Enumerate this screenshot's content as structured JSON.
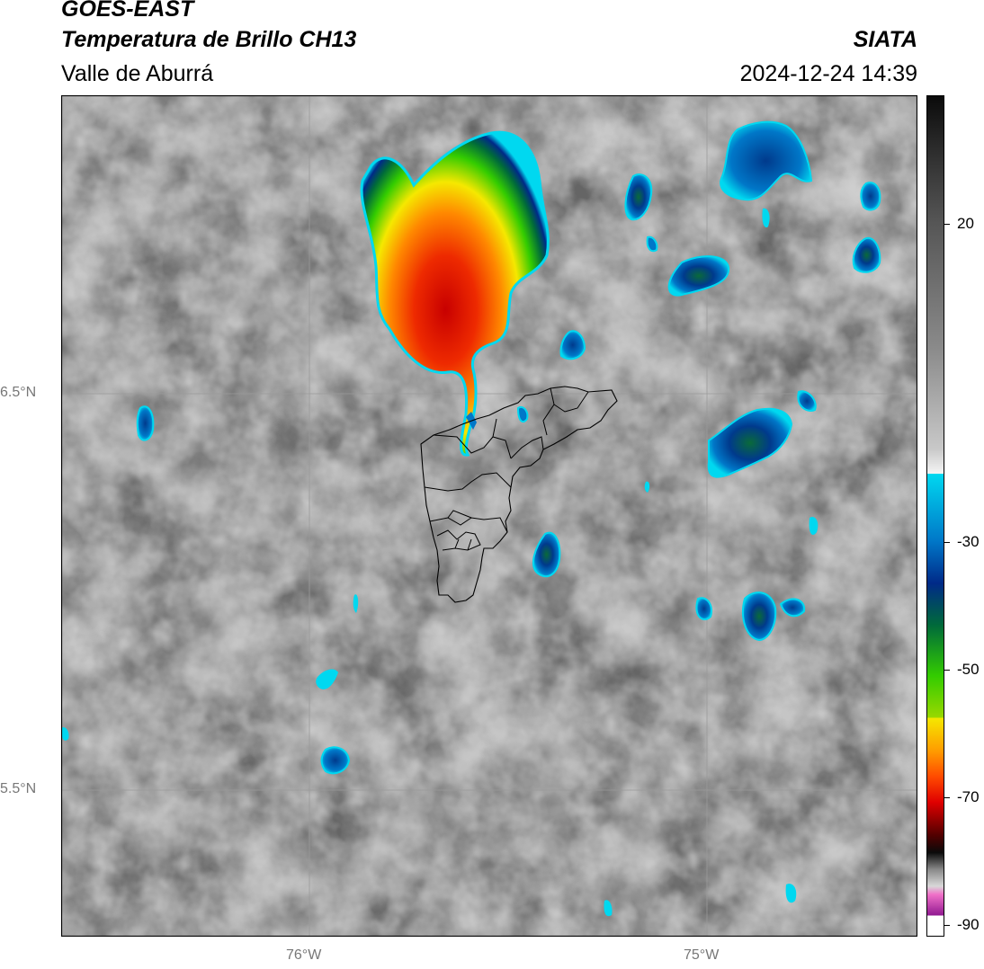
{
  "header": {
    "satellite": "GOES-EAST",
    "product": "Temperatura de Brillo CH13",
    "region": "Valle de Aburrá",
    "agency": "SIATA",
    "datetime": "2024-12-24 14:39"
  },
  "map": {
    "lat_labels": [
      "6.5°N",
      "5.5°N"
    ],
    "lon_labels": [
      "76°W",
      "75°W"
    ]
  },
  "colorbar": {
    "ticks": [
      "20",
      "-30",
      "-50",
      "-70",
      "-90"
    ]
  },
  "colors": {
    "storm_core": "#cc0000",
    "cold_cloud": "#003a8c",
    "cloud_edge": "#00d8f0"
  }
}
